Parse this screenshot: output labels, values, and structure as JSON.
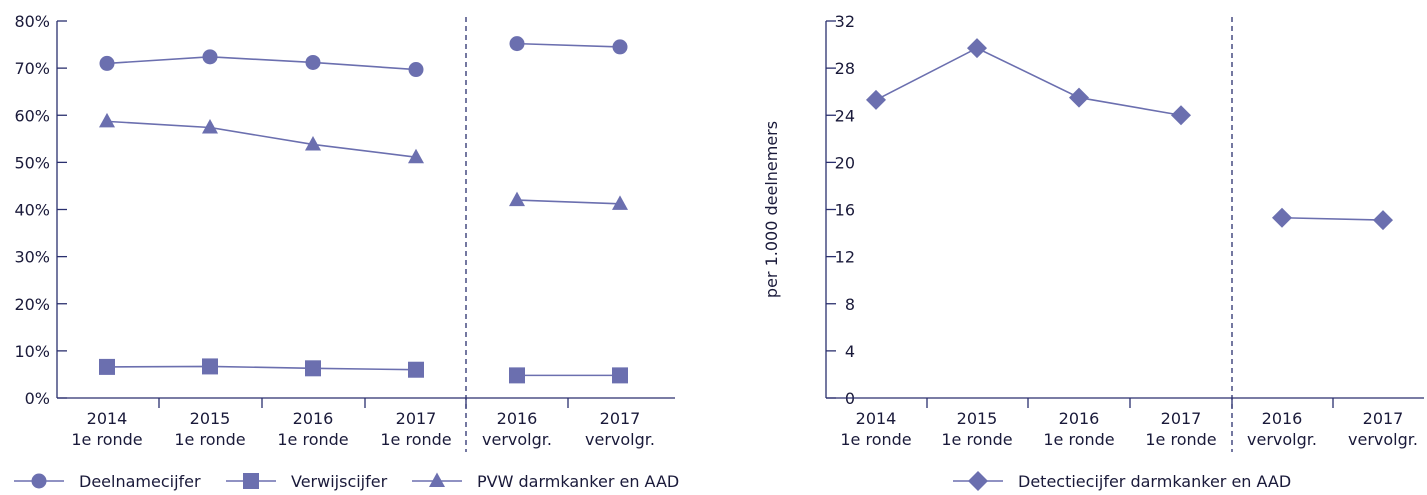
{
  "colors": {
    "series": "#6b6faf",
    "axis": "#2a2f6e",
    "text": "#1a1a3a"
  },
  "chart_data": [
    {
      "type": "line",
      "ylabel": "",
      "ylim": [
        0,
        80
      ],
      "y_ticks": [
        "0%",
        "10%",
        "20%",
        "30%",
        "40%",
        "50%",
        "60%",
        "70%",
        "80%"
      ],
      "y_tick_values": [
        0,
        10,
        20,
        30,
        40,
        50,
        60,
        70,
        80
      ],
      "categories": [
        [
          "2014",
          "1e ronde"
        ],
        [
          "2015",
          "1e ronde"
        ],
        [
          "2016",
          "1e ronde"
        ],
        [
          "2017",
          "1e ronde"
        ],
        [
          "2016",
          "vervolgr."
        ],
        [
          "2017",
          "vervolgr."
        ]
      ],
      "segments": [
        [
          0,
          1,
          2,
          3
        ],
        [
          4,
          5
        ]
      ],
      "series": [
        {
          "name": "Deelnamecijfer",
          "marker": "circle",
          "values": [
            71.0,
            72.4,
            71.2,
            69.7,
            75.2,
            74.5
          ]
        },
        {
          "name": "Verwijscijfer",
          "marker": "square",
          "values": [
            6.6,
            6.7,
            6.3,
            6.0,
            4.8,
            4.8
          ]
        },
        {
          "name": "PVW darmkanker en AAD",
          "marker": "triangle",
          "values": [
            58.7,
            57.4,
            53.8,
            51.1,
            42.0,
            41.2
          ]
        }
      ],
      "legend_position": "bottom"
    },
    {
      "type": "line",
      "ylabel": "per 1.000 deelnemers",
      "ylim": [
        0,
        32
      ],
      "y_ticks": [
        "0",
        "4",
        "8",
        "12",
        "16",
        "20",
        "24",
        "28",
        "32"
      ],
      "y_tick_values": [
        0,
        4,
        8,
        12,
        16,
        20,
        24,
        28,
        32
      ],
      "categories": [
        [
          "2014",
          "1e ronde"
        ],
        [
          "2015",
          "1e ronde"
        ],
        [
          "2016",
          "1e ronde"
        ],
        [
          "2017",
          "1e ronde"
        ],
        [
          "2016",
          "vervolgr."
        ],
        [
          "2017",
          "vervolgr."
        ]
      ],
      "segments": [
        [
          0,
          1,
          2,
          3
        ],
        [
          4,
          5
        ]
      ],
      "series": [
        {
          "name": "Detectiecijfer darmkanker en AAD",
          "marker": "diamond",
          "values": [
            25.3,
            29.7,
            25.5,
            24.0,
            15.3,
            15.1
          ]
        }
      ],
      "legend_position": "bottom"
    }
  ]
}
